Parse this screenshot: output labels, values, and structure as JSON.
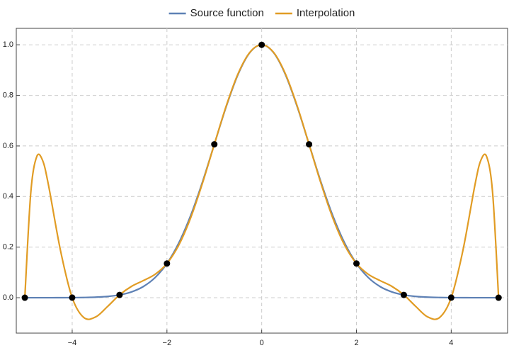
{
  "chart_data": {
    "type": "line",
    "x": [
      -5,
      -4.875,
      -4.75,
      -4.625,
      -4.5,
      -4.25,
      -4,
      -3.75,
      -3.5,
      -3.25,
      -3,
      -2.75,
      -2.5,
      -2.25,
      -2,
      -1.75,
      -1.5,
      -1.25,
      -1,
      -0.75,
      -0.5,
      -0.25,
      0,
      0.25,
      0.5,
      0.75,
      1,
      1.25,
      1.5,
      1.75,
      2,
      2.25,
      2.5,
      2.75,
      3,
      3.25,
      3.5,
      3.75,
      4,
      4.25,
      4.5,
      4.625,
      4.75,
      4.875,
      5
    ],
    "series": [
      {
        "name": "Source function",
        "color": "#5e81b5",
        "values": [
          0,
          0,
          0,
          0,
          0,
          0.0001,
          0.0003,
          0.0009,
          0.0022,
          0.0051,
          0.0111,
          0.0228,
          0.0439,
          0.0796,
          0.1353,
          0.2165,
          0.3247,
          0.4578,
          0.6065,
          0.7548,
          0.8825,
          0.9692,
          1,
          0.9692,
          0.8825,
          0.7548,
          0.6065,
          0.4578,
          0.3247,
          0.2165,
          0.1353,
          0.0796,
          0.0439,
          0.0228,
          0.0111,
          0.0051,
          0.0022,
          0.0009,
          0.0003,
          0.0001,
          0,
          0,
          0,
          0,
          0
        ]
      },
      {
        "name": "Interpolation",
        "color": "#e19c24",
        "values": [
          0,
          0.4128,
          0.5569,
          0.5431,
          0.445,
          0.1895,
          0.0003,
          -0.079,
          -0.0757,
          -0.0342,
          0.0111,
          0.0446,
          0.0675,
          0.0926,
          0.1353,
          0.2082,
          0.3156,
          0.4529,
          0.6065,
          0.7576,
          0.885,
          0.9701,
          1,
          0.9701,
          0.885,
          0.7576,
          0.6065,
          0.4529,
          0.3156,
          0.2082,
          0.1353,
          0.0926,
          0.0675,
          0.0446,
          0.0111,
          -0.0342,
          -0.0757,
          -0.079,
          0.0003,
          0.1895,
          0.445,
          0.5431,
          0.5569,
          0.4128,
          0
        ]
      }
    ],
    "markers": {
      "color": "#000000",
      "x": [
        -5,
        -4,
        -3,
        -2,
        -1,
        0,
        1,
        2,
        3,
        4,
        5
      ],
      "values": [
        0,
        0.0003,
        0.0111,
        0.1353,
        0.6065,
        1,
        0.6065,
        0.1353,
        0.0111,
        0.0003,
        0
      ]
    },
    "xlim": [
      -5.18,
      5.19
    ],
    "ylim": [
      -0.14,
      1.065
    ],
    "xticks": [
      {
        "value": -4,
        "label": "−4"
      },
      {
        "value": -2,
        "label": "−2"
      },
      0,
      2,
      4
    ],
    "yticks": [
      {
        "value": 0,
        "label": "0.0"
      },
      0.2,
      0.4,
      0.6,
      0.8,
      {
        "value": 1,
        "label": "1.0"
      }
    ],
    "grid": true,
    "legend": "top"
  }
}
